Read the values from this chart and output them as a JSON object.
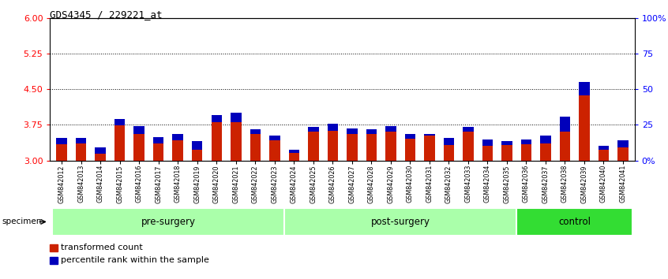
{
  "title": "GDS4345 / 229221_at",
  "samples": [
    "GSM842012",
    "GSM842013",
    "GSM842014",
    "GSM842015",
    "GSM842016",
    "GSM842017",
    "GSM842018",
    "GSM842019",
    "GSM842020",
    "GSM842021",
    "GSM842022",
    "GSM842023",
    "GSM842024",
    "GSM842025",
    "GSM842026",
    "GSM842027",
    "GSM842028",
    "GSM842029",
    "GSM842030",
    "GSM842031",
    "GSM842032",
    "GSM842033",
    "GSM842034",
    "GSM842035",
    "GSM842036",
    "GSM842037",
    "GSM842038",
    "GSM842039",
    "GSM842040",
    "GSM842041"
  ],
  "red_values": [
    3.34,
    3.36,
    3.15,
    3.74,
    3.55,
    3.35,
    3.43,
    3.22,
    3.8,
    3.8,
    3.56,
    3.42,
    3.16,
    3.6,
    3.63,
    3.56,
    3.55,
    3.6,
    3.46,
    3.52,
    3.32,
    3.6,
    3.31,
    3.33,
    3.34,
    3.36,
    3.6,
    4.38,
    3.22,
    3.28
  ],
  "blue_values": [
    0.14,
    0.12,
    0.13,
    0.14,
    0.18,
    0.14,
    0.13,
    0.18,
    0.16,
    0.2,
    0.1,
    0.1,
    0.07,
    0.1,
    0.14,
    0.12,
    0.1,
    0.13,
    0.1,
    0.04,
    0.16,
    0.1,
    0.13,
    0.07,
    0.1,
    0.16,
    0.32,
    0.28,
    0.08,
    0.14
  ],
  "ymin": 3.0,
  "ymax": 6.0,
  "yticks_left": [
    3.0,
    3.75,
    4.5,
    5.25,
    6.0
  ],
  "dotted_lines": [
    3.75,
    4.5,
    5.25
  ],
  "yticks_right": [
    0,
    25,
    50,
    75,
    100
  ],
  "ytick_labels_right": [
    "0%",
    "25",
    "50",
    "75",
    "100%"
  ],
  "red_color": "#CC2200",
  "blue_color": "#0000BB",
  "bar_width": 0.55,
  "groups": [
    {
      "label": "pre-surgery",
      "start": 0,
      "end": 11,
      "color": "#AAFFAA"
    },
    {
      "label": "post-surgery",
      "start": 12,
      "end": 23,
      "color": "#AAFFAA"
    },
    {
      "label": "control",
      "start": 24,
      "end": 29,
      "color": "#33DD33"
    }
  ],
  "specimen_label": "specimen",
  "legend_items": [
    {
      "label": "transformed count",
      "color": "#CC2200"
    },
    {
      "label": "percentile rank within the sample",
      "color": "#0000BB"
    }
  ],
  "xticklabel_bg": "#CCCCCC"
}
